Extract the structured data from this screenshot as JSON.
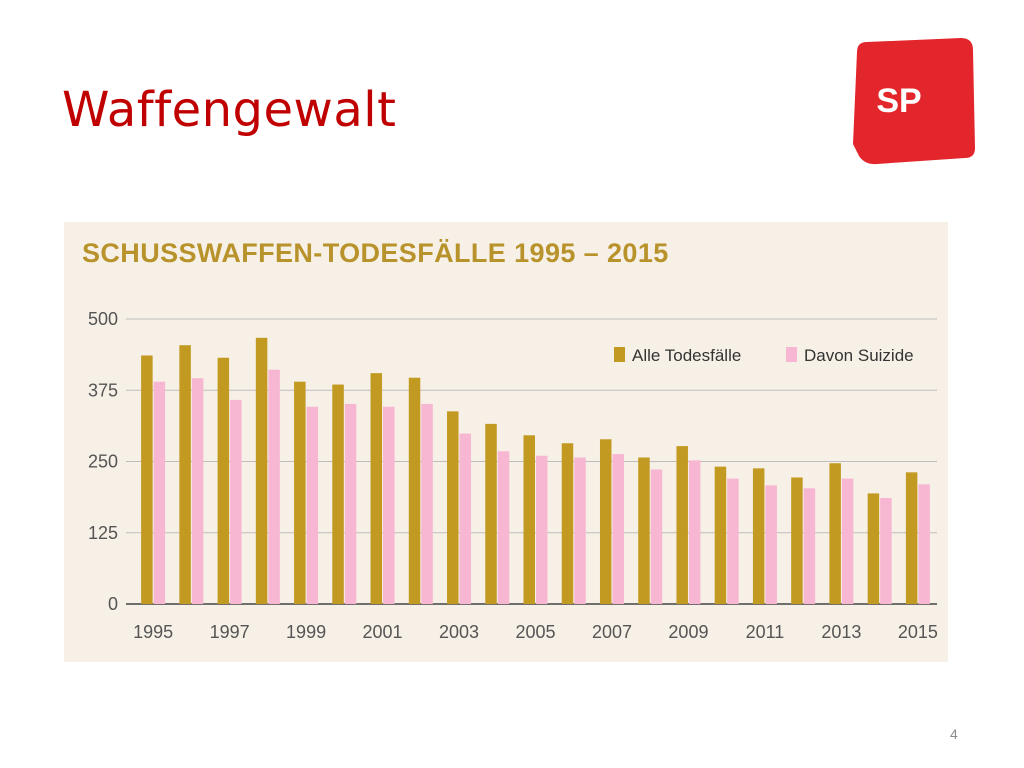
{
  "slide": {
    "title": "Waffengewalt",
    "page_number": "4",
    "logo_text": "SP",
    "logo_color": "#e3262b"
  },
  "colors": {
    "title": "#c00000",
    "chart_title": "#b8922a",
    "panel_background": "#f7f0e6",
    "series_all": "#c29a21",
    "series_suicide": "#f7b6d2",
    "grid": "#bdbdbd"
  },
  "chart_data": {
    "type": "bar",
    "title": "SCHUSSWAFFEN-TODESFÄLLE 1995 – 2015",
    "xlabel": "",
    "ylabel": "",
    "ylim": [
      0,
      500
    ],
    "yticks": [
      0,
      125,
      250,
      375,
      500
    ],
    "grid": true,
    "legend_position": "top-right",
    "categories": [
      "1995",
      "1996",
      "1997",
      "1998",
      "1999",
      "2000",
      "2001",
      "2002",
      "2003",
      "2004",
      "2005",
      "2006",
      "2007",
      "2008",
      "2009",
      "2010",
      "2011",
      "2012",
      "2013",
      "2014",
      "2015"
    ],
    "xtick_labels": [
      "1995",
      "1997",
      "1999",
      "2001",
      "2003",
      "2005",
      "2007",
      "2009",
      "2011",
      "2013",
      "2015"
    ],
    "series": [
      {
        "name": "Alle Todesfälle",
        "color": "#c29a21",
        "values": [
          436,
          454,
          432,
          467,
          390,
          385,
          405,
          397,
          338,
          316,
          296,
          282,
          289,
          257,
          277,
          241,
          238,
          222,
          247,
          194,
          231
        ]
      },
      {
        "name": "Davon Suizide",
        "color": "#f7b6d2",
        "values": [
          390,
          396,
          358,
          411,
          346,
          351,
          346,
          351,
          299,
          268,
          260,
          257,
          263,
          236,
          252,
          220,
          208,
          203,
          220,
          186,
          210
        ]
      }
    ]
  }
}
